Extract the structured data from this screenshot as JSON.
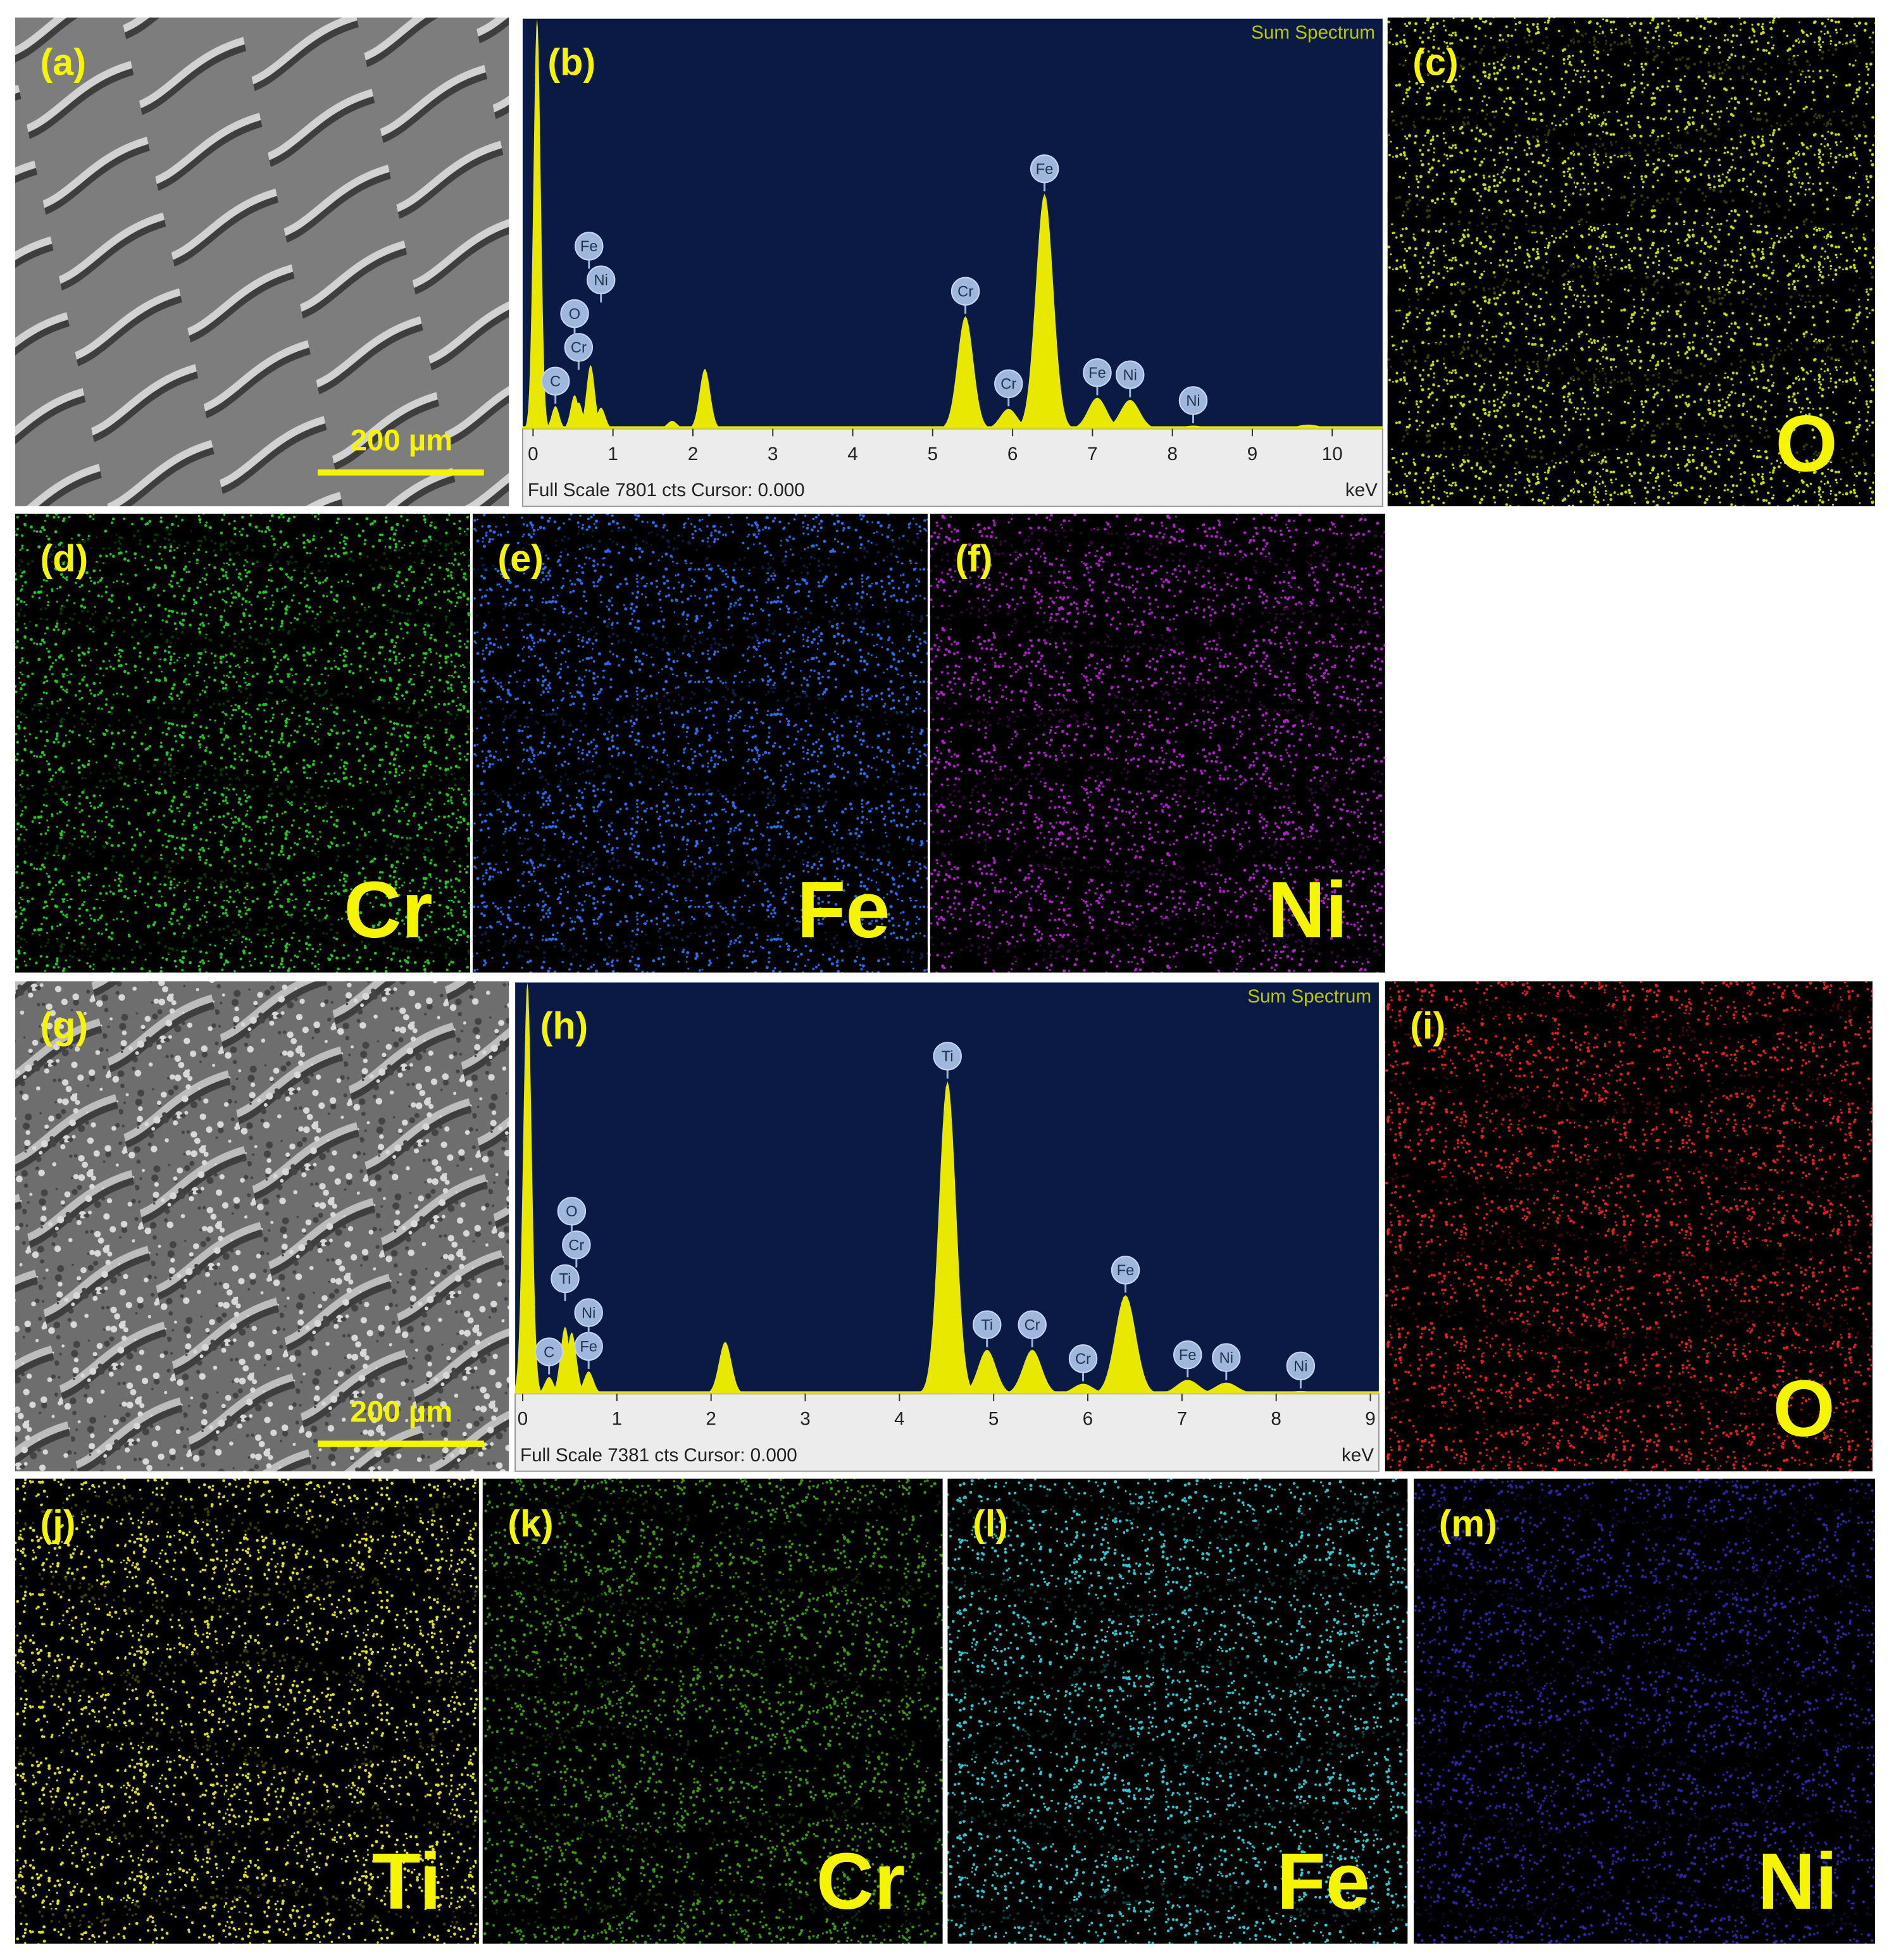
{
  "panels": [
    {
      "label": "(a)",
      "kind": "sem",
      "scale_bar": "200 µm"
    },
    {
      "label": "(b)",
      "kind": "spectrum",
      "spectrum": {
        "type": "area",
        "title": "Sum Spectrum",
        "footer": "Full Scale 7801 cts Cursor: 0.000",
        "x_unit": "keV",
        "color": "#e8e800",
        "xlim": [
          -0.13,
          10.63
        ],
        "xticks": [
          0,
          1,
          2,
          3,
          4,
          5,
          6,
          7,
          8,
          9,
          10
        ],
        "ylim": [
          0,
          7801
        ],
        "x": [
          0.05,
          0.28,
          0.52,
          0.57,
          0.72,
          0.85,
          1.74,
          2.15,
          5.41,
          5.95,
          6.4,
          7.06,
          7.47,
          8.26,
          9.7
        ],
        "values": [
          7801,
          430,
          640,
          500,
          1210,
          400,
          150,
          1140,
          2140,
          380,
          4470,
          590,
          550,
          60,
          80
        ],
        "markers": [
          {
            "label": "C",
            "x": 0.28
          },
          {
            "label": "Cr",
            "x": 0.57
          },
          {
            "label": "O",
            "x": 0.52
          },
          {
            "label": "Ni",
            "x": 0.85
          },
          {
            "label": "Fe",
            "x": 0.7
          },
          {
            "label": "Cr",
            "x": 5.41
          },
          {
            "label": "Cr",
            "x": 5.95
          },
          {
            "label": "Fe",
            "x": 6.4
          },
          {
            "label": "Fe",
            "x": 7.06
          },
          {
            "label": "Ni",
            "x": 7.47
          },
          {
            "label": "Ni",
            "x": 8.26
          }
        ]
      }
    },
    {
      "label": "(c)",
      "kind": "map",
      "element": "O",
      "color": "#c8dc00"
    },
    {
      "label": "(d)",
      "kind": "map",
      "element": "Cr",
      "color": "#22c822"
    },
    {
      "label": "(e)",
      "kind": "map",
      "element": "Fe",
      "color": "#2a6cf0"
    },
    {
      "label": "(f)",
      "kind": "map",
      "element": "Ni",
      "color": "#b020c8"
    },
    {
      "label": "(g)",
      "kind": "sem",
      "scale_bar": "200 µm"
    },
    {
      "label": "(h)",
      "kind": "spectrum",
      "spectrum": {
        "type": "area",
        "title": "Sum Spectrum",
        "footer": "Full Scale 7381 cts Cursor: 0.000",
        "x_unit": "keV",
        "color": "#e8e800",
        "xlim": [
          -0.08,
          9.09
        ],
        "xticks": [
          0,
          1,
          2,
          3,
          4,
          5,
          6,
          7,
          8,
          9
        ],
        "ylim": [
          0,
          7381
        ],
        "x": [
          0.05,
          0.28,
          0.45,
          0.52,
          0.7,
          2.15,
          4.51,
          4.93,
          5.41,
          5.95,
          6.4,
          7.06,
          7.47,
          8.26
        ],
        "values": [
          7381,
          300,
          1200,
          1100,
          400,
          930,
          5610,
          790,
          790,
          180,
          1770,
          250,
          200,
          50
        ],
        "markers": [
          {
            "label": "C",
            "x": 0.28
          },
          {
            "label": "Fe",
            "x": 0.7
          },
          {
            "label": "Ni",
            "x": 0.7
          },
          {
            "label": "Ti",
            "x": 0.45
          },
          {
            "label": "Cr",
            "x": 0.57
          },
          {
            "label": "O",
            "x": 0.52
          },
          {
            "label": "Ti",
            "x": 4.51
          },
          {
            "label": "Ti",
            "x": 4.93
          },
          {
            "label": "Cr",
            "x": 5.41
          },
          {
            "label": "Cr",
            "x": 5.95
          },
          {
            "label": "Fe",
            "x": 6.4
          },
          {
            "label": "Fe",
            "x": 7.06
          },
          {
            "label": "Ni",
            "x": 7.47
          },
          {
            "label": "Ni",
            "x": 8.26
          }
        ]
      }
    },
    {
      "label": "(i)",
      "kind": "map",
      "element": "O",
      "color": "#e02020"
    },
    {
      "label": "(j)",
      "kind": "map",
      "element": "Ti",
      "color": "#e0e020"
    },
    {
      "label": "(k)",
      "kind": "map",
      "element": "Cr",
      "color": "#3a9a10"
    },
    {
      "label": "(l)",
      "kind": "map",
      "element": "Fe",
      "color": "#30c8d0"
    },
    {
      "label": "(m)",
      "kind": "map",
      "element": "Ni",
      "color": "#2828a8"
    }
  ]
}
